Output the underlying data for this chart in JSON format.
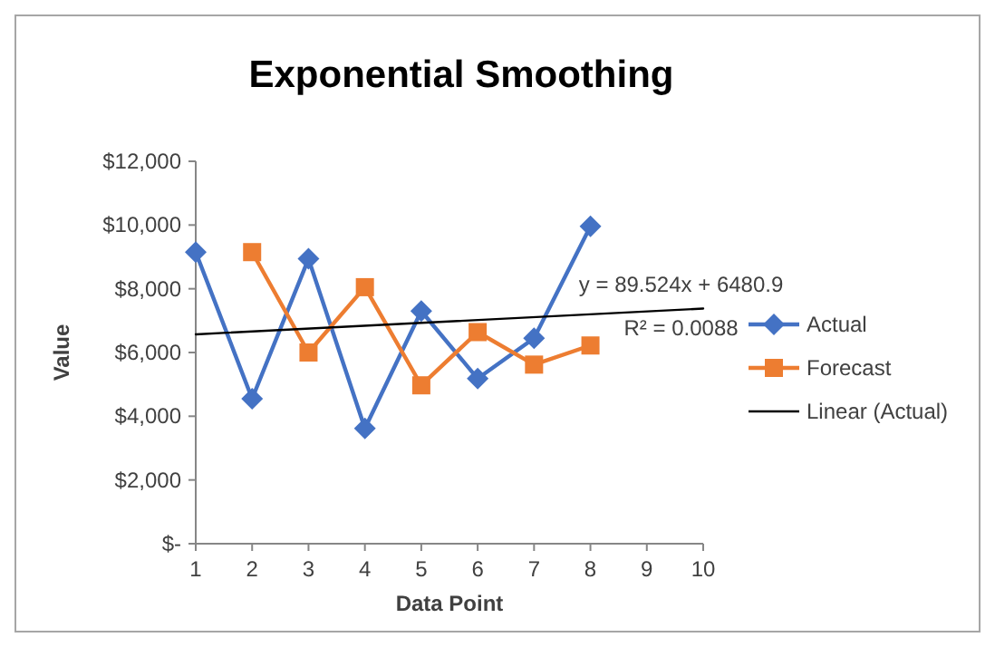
{
  "chart_data": {
    "type": "line",
    "title": "Exponential Smoothing",
    "xlabel": "Data Point",
    "ylabel": "Value",
    "xlim": [
      1,
      10
    ],
    "xticks": [
      1,
      2,
      3,
      4,
      5,
      6,
      7,
      8,
      9,
      10
    ],
    "ylim": [
      0,
      12000
    ],
    "yticks": [
      {
        "value": 0,
        "label": "$-"
      },
      {
        "value": 2000,
        "label": "$2,000"
      },
      {
        "value": 4000,
        "label": "$4,000"
      },
      {
        "value": 6000,
        "label": "$6,000"
      },
      {
        "value": 8000,
        "label": "$8,000"
      },
      {
        "value": 10000,
        "label": "$10,000"
      },
      {
        "value": 12000,
        "label": "$12,000"
      }
    ],
    "x": [
      1,
      2,
      3,
      4,
      5,
      6,
      7,
      8
    ],
    "series": [
      {
        "name": "Actual",
        "color": "#4472c4",
        "marker": "diamond",
        "values": [
          9150,
          4550,
          8940,
          3620,
          7300,
          5180,
          6450,
          9960
        ]
      },
      {
        "name": "Forecast",
        "color": "#ed7d31",
        "marker": "square",
        "values": [
          null,
          9150,
          6000,
          8050,
          4970,
          6640,
          5620,
          6220
        ]
      },
      {
        "name": "Linear (Actual)",
        "color": "#000000",
        "marker": "none",
        "x": [
          1,
          10
        ],
        "values": [
          6570,
          7380
        ]
      }
    ],
    "annotations": [
      "y = 89.524x + 6480.9",
      "R² = 0.0088"
    ],
    "legend": "right"
  }
}
